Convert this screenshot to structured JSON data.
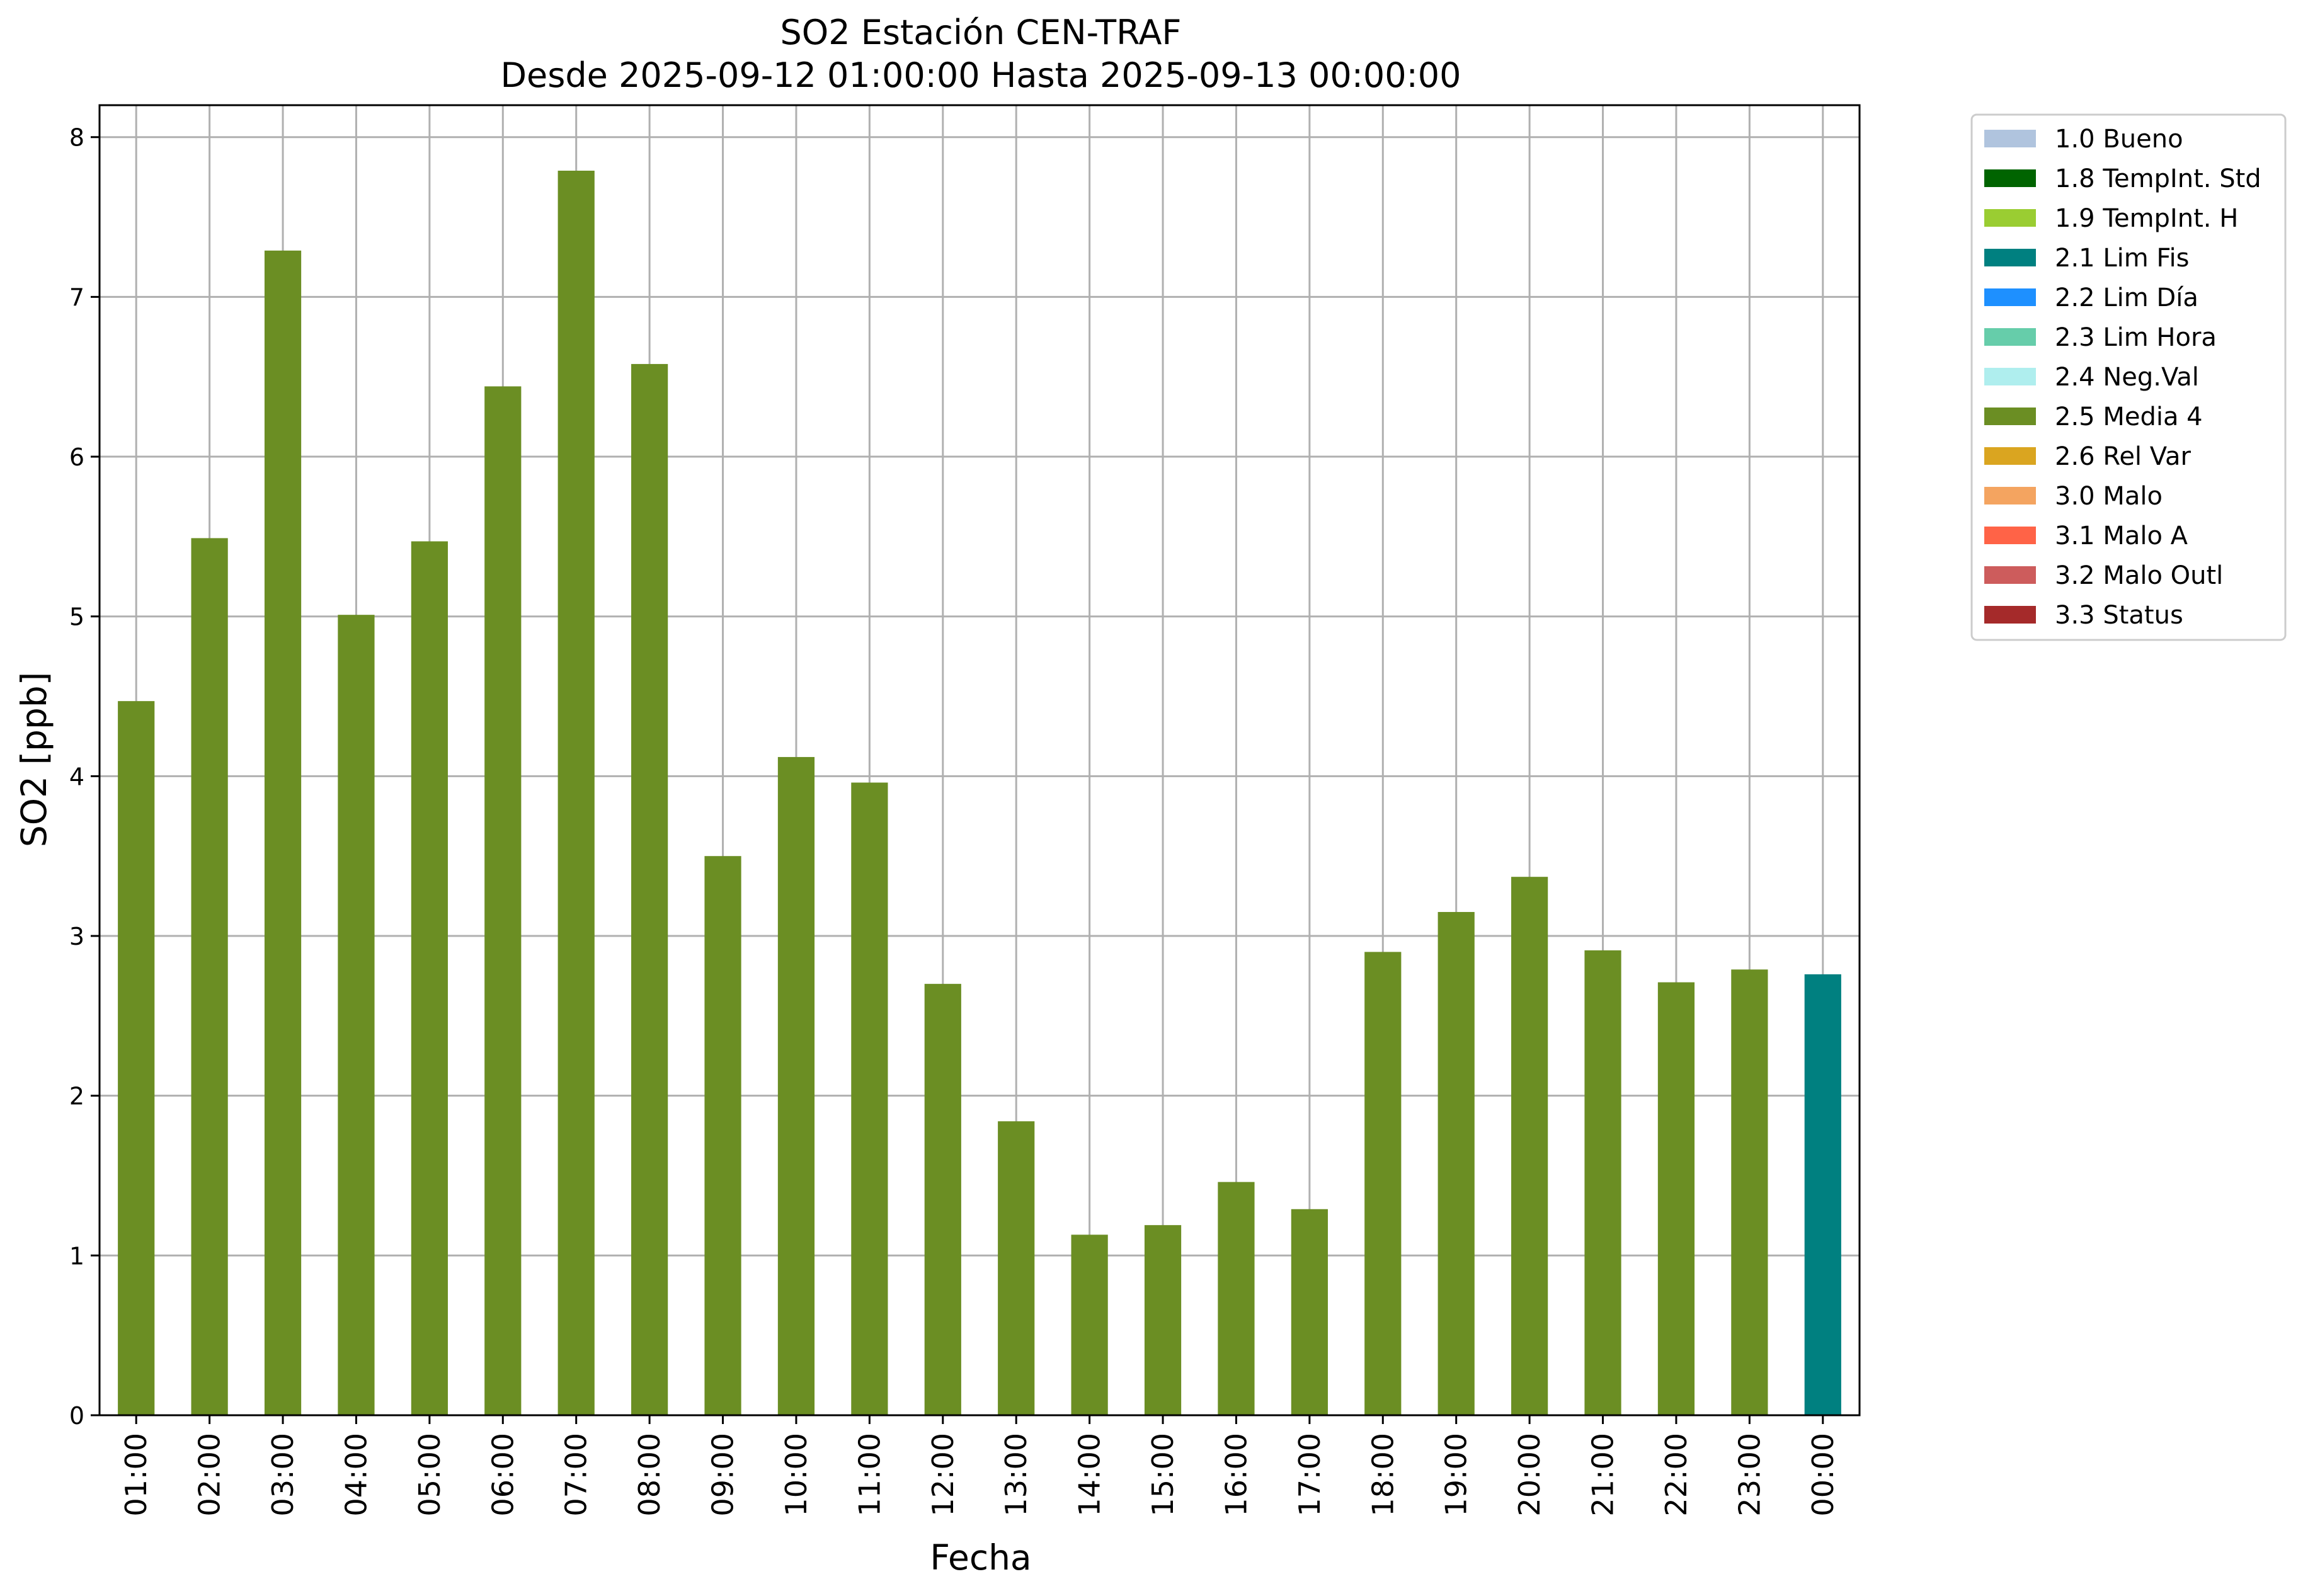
{
  "chart_data": {
    "type": "bar",
    "title": "SO2 Estación CEN-TRAF",
    "subtitle": "Desde 2025-09-12 01:00:00 Hasta 2025-09-13 00:00:00",
    "xlabel": "Fecha",
    "ylabel": "SO2 [ppb]",
    "ylim": [
      0,
      8.2
    ],
    "yticks": [
      0,
      1,
      2,
      3,
      4,
      5,
      6,
      7,
      8
    ],
    "grid": true,
    "legend_position": "outside-right",
    "categories": [
      "01:00",
      "02:00",
      "03:00",
      "04:00",
      "05:00",
      "06:00",
      "07:00",
      "08:00",
      "09:00",
      "10:00",
      "11:00",
      "12:00",
      "13:00",
      "14:00",
      "15:00",
      "16:00",
      "17:00",
      "18:00",
      "19:00",
      "20:00",
      "21:00",
      "22:00",
      "23:00",
      "00:00"
    ],
    "values": [
      4.47,
      5.49,
      7.29,
      5.01,
      5.47,
      6.44,
      7.79,
      6.58,
      3.5,
      4.12,
      3.96,
      2.7,
      1.84,
      1.13,
      1.19,
      1.46,
      1.29,
      2.9,
      3.15,
      3.37,
      2.91,
      2.71,
      2.79,
      2.76
    ],
    "value_flags": [
      "2.5 Media 4",
      "2.5 Media 4",
      "2.5 Media 4",
      "2.5 Media 4",
      "2.5 Media 4",
      "2.5 Media 4",
      "2.5 Media 4",
      "2.5 Media 4",
      "2.5 Media 4",
      "2.5 Media 4",
      "2.5 Media 4",
      "2.5 Media 4",
      "2.5 Media 4",
      "2.5 Media 4",
      "2.5 Media 4",
      "2.5 Media 4",
      "2.5 Media 4",
      "2.5 Media 4",
      "2.5 Media 4",
      "2.5 Media 4",
      "2.5 Media 4",
      "2.5 Media 4",
      "2.5 Media 4",
      "2.1 Lim Fis"
    ],
    "legend": [
      {
        "label": "1.0 Bueno",
        "color": "#b0c4de"
      },
      {
        "label": "1.8 TempInt. Std",
        "color": "#006400"
      },
      {
        "label": "1.9 TempInt. H",
        "color": "#9acd32"
      },
      {
        "label": "2.1 Lim Fis",
        "color": "#008080"
      },
      {
        "label": "2.2 Lim Día",
        "color": "#1e90ff"
      },
      {
        "label": "2.3 Lim Hora",
        "color": "#66cdaa"
      },
      {
        "label": "2.4 Neg.Val",
        "color": "#afeeee"
      },
      {
        "label": "2.5 Media 4",
        "color": "#6b8e23"
      },
      {
        "label": "2.6 Rel Var",
        "color": "#daa520"
      },
      {
        "label": "3.0 Malo",
        "color": "#f4a460"
      },
      {
        "label": "3.1 Malo A",
        "color": "#ff6347"
      },
      {
        "label": "3.2 Malo Outl",
        "color": "#cd5c5c"
      },
      {
        "label": "3.3 Status",
        "color": "#a52a2a"
      }
    ]
  }
}
